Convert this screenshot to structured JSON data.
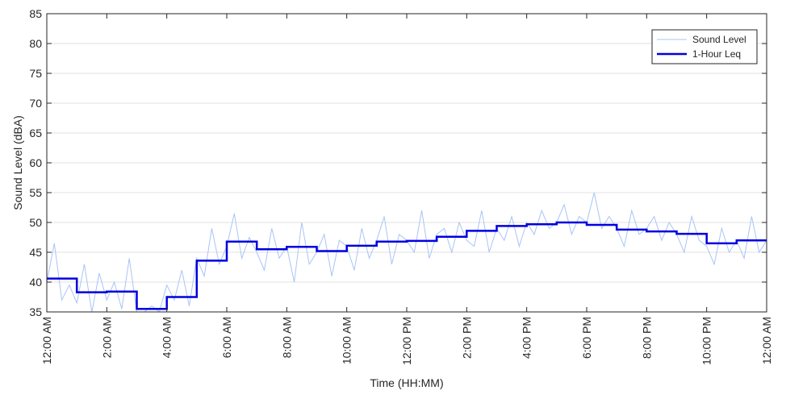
{
  "chart_data": {
    "type": "line",
    "title": "",
    "xlabel": "Time (HH:MM)",
    "ylabel": "Sound Level (dBA)",
    "xlim": [
      0,
      24
    ],
    "ylim": [
      35,
      85
    ],
    "y_ticks": [
      35,
      40,
      45,
      50,
      55,
      60,
      65,
      70,
      75,
      80,
      85
    ],
    "x_ticks": [
      {
        "x": 0,
        "label": "12:00 AM"
      },
      {
        "x": 2,
        "label": "2:00 AM"
      },
      {
        "x": 4,
        "label": "4:00 AM"
      },
      {
        "x": 6,
        "label": "6:00 AM"
      },
      {
        "x": 8,
        "label": "8:00 AM"
      },
      {
        "x": 10,
        "label": "10:00 AM"
      },
      {
        "x": 12,
        "label": "12:00 PM"
      },
      {
        "x": 14,
        "label": "2:00 PM"
      },
      {
        "x": 16,
        "label": "4:00 PM"
      },
      {
        "x": 18,
        "label": "6:00 PM"
      },
      {
        "x": 20,
        "label": "8:00 PM"
      },
      {
        "x": 22,
        "label": "10:00 PM"
      },
      {
        "x": 24,
        "label": "12:00 AM"
      }
    ],
    "grid": "horizontal",
    "legend_position": "top-right",
    "series": [
      {
        "name": "Sound Level",
        "style": "thin-line",
        "color": "#a9c4f5",
        "x": [
          0,
          0.25,
          0.5,
          0.75,
          1,
          1.25,
          1.5,
          1.75,
          2,
          2.25,
          2.5,
          2.75,
          3,
          3.25,
          3.5,
          3.75,
          4,
          4.25,
          4.5,
          4.75,
          5,
          5.25,
          5.5,
          5.75,
          6,
          6.25,
          6.5,
          6.75,
          7,
          7.25,
          7.5,
          7.75,
          8,
          8.25,
          8.5,
          8.75,
          9,
          9.25,
          9.5,
          9.75,
          10,
          10.25,
          10.5,
          10.75,
          11,
          11.25,
          11.5,
          11.75,
          12,
          12.25,
          12.5,
          12.75,
          13,
          13.25,
          13.5,
          13.75,
          14,
          14.25,
          14.5,
          14.75,
          15,
          15.25,
          15.5,
          15.75,
          16,
          16.25,
          16.5,
          16.75,
          17,
          17.25,
          17.5,
          17.75,
          18,
          18.25,
          18.5,
          18.75,
          19,
          19.25,
          19.5,
          19.75,
          20,
          20.25,
          20.5,
          20.75,
          21,
          21.25,
          21.5,
          21.75,
          22,
          22.25,
          22.5,
          22.75,
          23,
          23.25,
          23.5,
          23.75,
          24
        ],
        "values": [
          40,
          46.5,
          37,
          39.5,
          36.5,
          43,
          35,
          41.5,
          37,
          40,
          35.5,
          44,
          35,
          35,
          36,
          35,
          39.5,
          37,
          42,
          36,
          44,
          41,
          49,
          43,
          46,
          51.5,
          44,
          47.5,
          45,
          42,
          49,
          44,
          46,
          40,
          50,
          43,
          45,
          48,
          41,
          47,
          46,
          42,
          49,
          44,
          47,
          51,
          43,
          48,
          47,
          45,
          52,
          44,
          48,
          49,
          45,
          50,
          47,
          46,
          52,
          45,
          49,
          47,
          51,
          46,
          50,
          48,
          52,
          49,
          50,
          53,
          48,
          51,
          50,
          55,
          49,
          51,
          49,
          46,
          52,
          48,
          49,
          51,
          47,
          50,
          48,
          45,
          51,
          47,
          46,
          43,
          49,
          45,
          47,
          44,
          51,
          45,
          47
        ]
      },
      {
        "name": "1-Hour Leq",
        "style": "step",
        "color": "#0000e0",
        "x": [
          0,
          1,
          2,
          3,
          4,
          5,
          6,
          7,
          8,
          9,
          10,
          11,
          12,
          13,
          14,
          15,
          16,
          17,
          18,
          19,
          20,
          21,
          22,
          23
        ],
        "values": [
          40.6,
          38.3,
          38.4,
          35.5,
          37.5,
          43.6,
          46.8,
          45.5,
          45.9,
          45.2,
          46.1,
          46.8,
          46.9,
          47.6,
          48.6,
          49.4,
          49.7,
          50.0,
          49.6,
          48.8,
          48.5,
          48.1,
          46.5,
          47.0
        ]
      }
    ]
  }
}
